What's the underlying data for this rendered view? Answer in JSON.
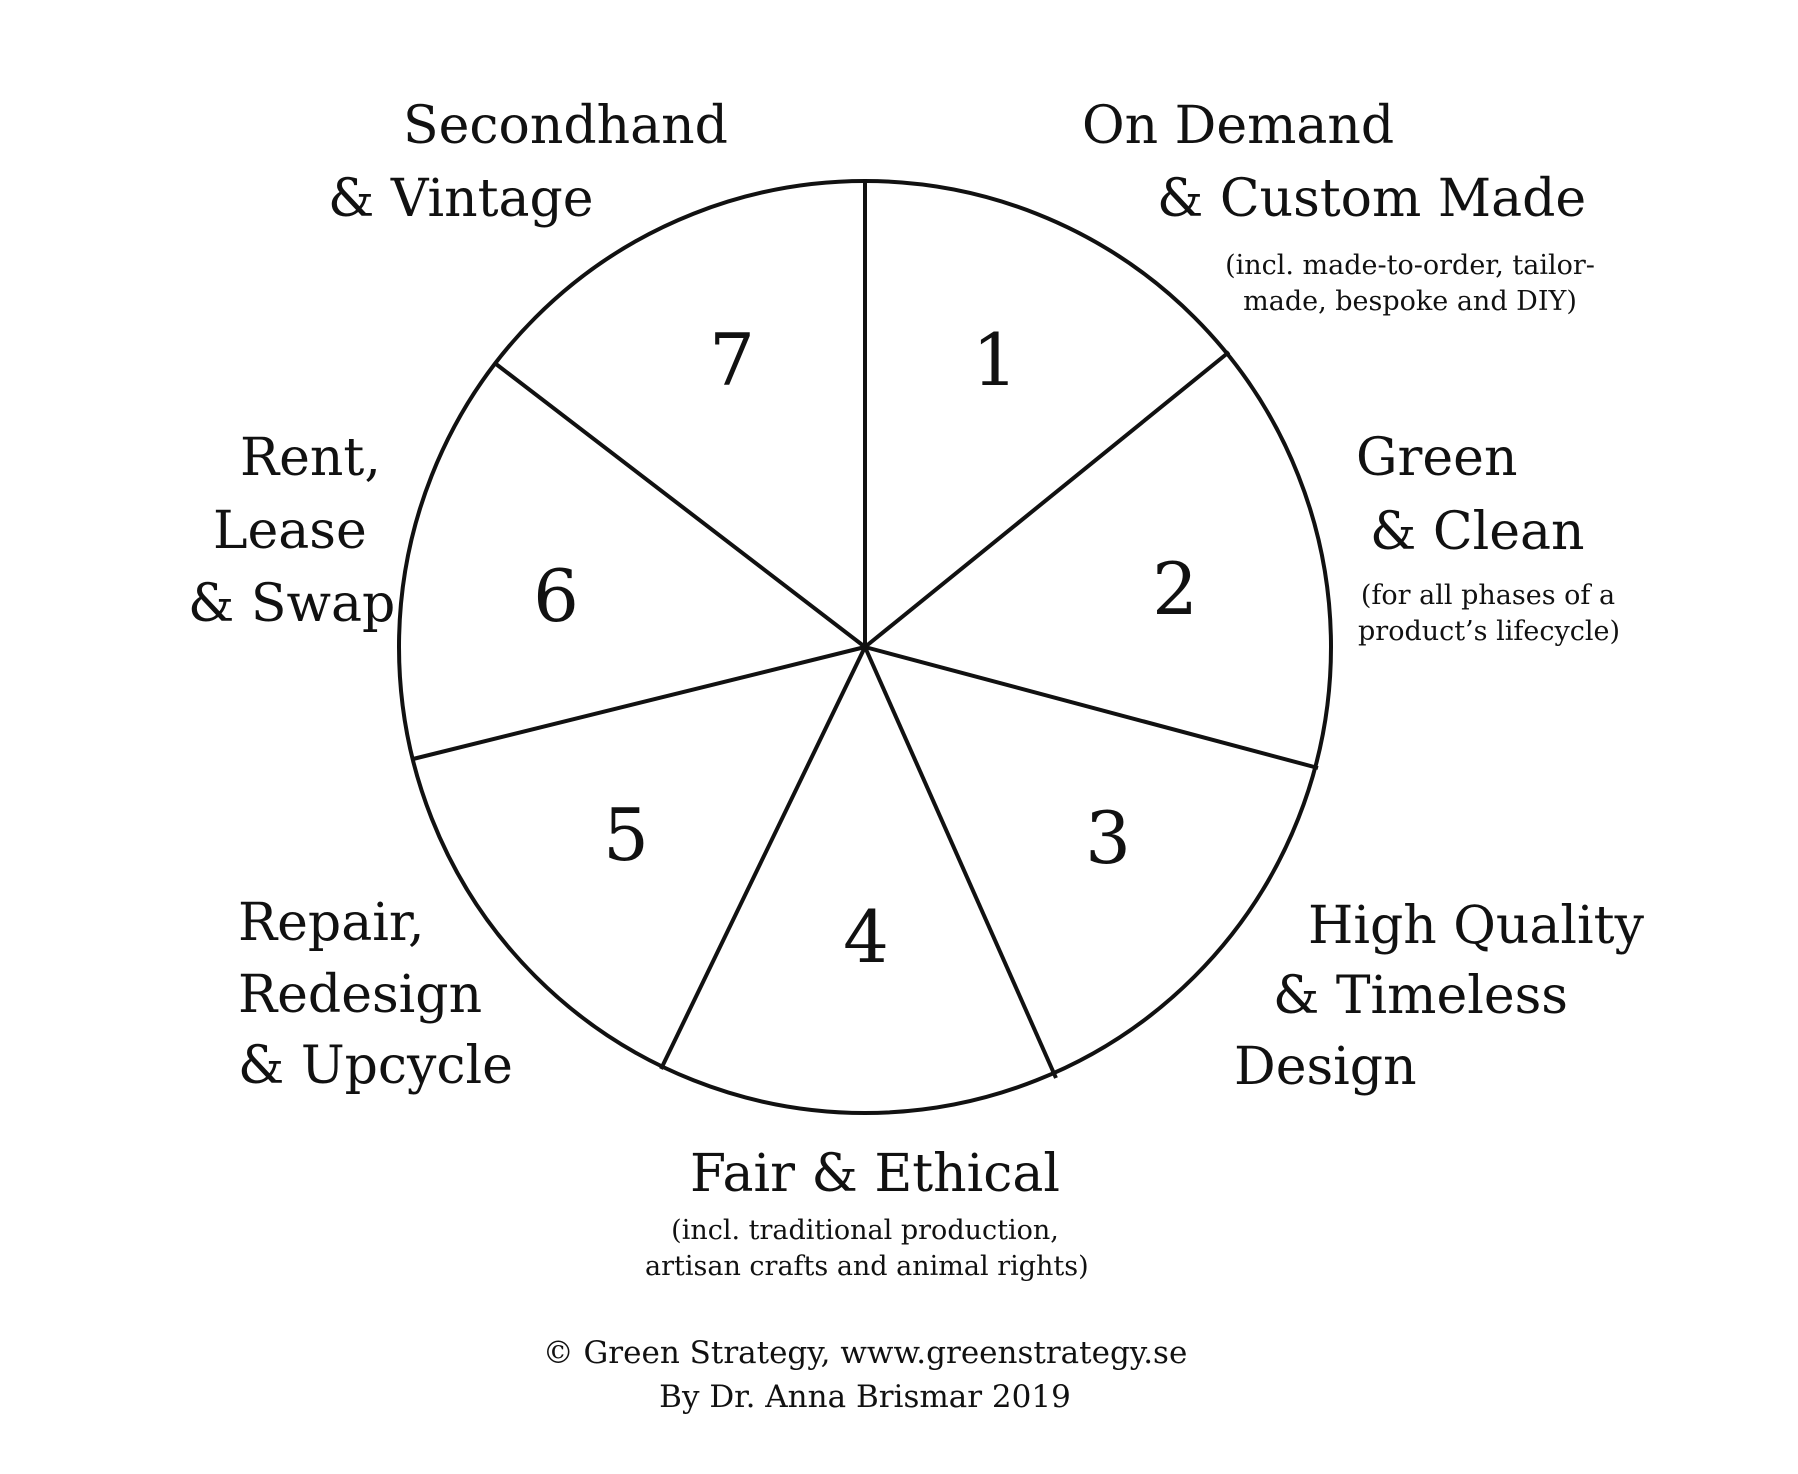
{
  "segments": [
    {
      "number": "1",
      "title": [
        "On Demand",
        "& Custom Made"
      ],
      "note": [
        "(incl. made-to-order, tailor-",
        "made, bespoke and DIY)"
      ]
    },
    {
      "number": "2",
      "title": [
        "Green",
        "& Clean"
      ],
      "note": [
        "(for all phases of a",
        "product’s lifecycle)"
      ]
    },
    {
      "number": "3",
      "title": [
        "High Quality",
        "& Timeless",
        "Design"
      ],
      "note": []
    },
    {
      "number": "4",
      "title": [
        "Fair & Ethical"
      ],
      "note": [
        "(incl. traditional production,",
        "artisan crafts and animal rights)"
      ]
    },
    {
      "number": "5",
      "title": [
        "Repair,",
        "Redesign",
        "& Upcycle"
      ],
      "note": []
    },
    {
      "number": "6",
      "title": [
        "Rent,",
        "Lease",
        "& Swap"
      ],
      "note": []
    },
    {
      "number": "7",
      "title": [
        "Secondhand",
        "& Vintage"
      ],
      "note": []
    }
  ],
  "footer": {
    "line1": "© Green Strategy, www.greenstrategy.se",
    "line2": "By Dr. Anna Brismar 2019"
  },
  "colors": {
    "stroke": "#111111",
    "background": "#ffffff"
  }
}
